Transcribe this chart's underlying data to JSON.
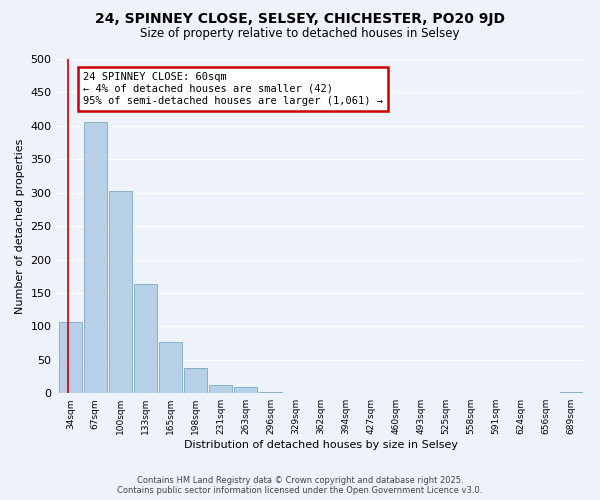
{
  "title": "24, SPINNEY CLOSE, SELSEY, CHICHESTER, PO20 9JD",
  "subtitle": "Size of property relative to detached houses in Selsey",
  "xlabel": "Distribution of detached houses by size in Selsey",
  "ylabel": "Number of detached properties",
  "bar_labels": [
    "34sqm",
    "67sqm",
    "100sqm",
    "133sqm",
    "165sqm",
    "198sqm",
    "231sqm",
    "263sqm",
    "296sqm",
    "329sqm",
    "362sqm",
    "394sqm",
    "427sqm",
    "460sqm",
    "493sqm",
    "525sqm",
    "558sqm",
    "591sqm",
    "624sqm",
    "656sqm",
    "689sqm"
  ],
  "bar_values": [
    107,
    405,
    302,
    163,
    77,
    37,
    13,
    9,
    2,
    0,
    0,
    0,
    0,
    0,
    0,
    0,
    0,
    0,
    0,
    0,
    2
  ],
  "bar_color": "#b8cfe8",
  "bar_edge_color": "#7aaac8",
  "annotation_text_line1": "24 SPINNEY CLOSE: 60sqm",
  "annotation_text_line2": "← 4% of detached houses are smaller (42)",
  "annotation_text_line3": "95% of semi-detached houses are larger (1,061) →",
  "annotation_box_color": "#ffffff",
  "annotation_box_edge": "#cc0000",
  "red_line_color": "#cc0000",
  "ylim": [
    0,
    500
  ],
  "yticks": [
    0,
    50,
    100,
    150,
    200,
    250,
    300,
    350,
    400,
    450,
    500
  ],
  "bg_color": "#eef2fa",
  "footer_line1": "Contains HM Land Registry data © Crown copyright and database right 2025.",
  "footer_line2": "Contains public sector information licensed under the Open Government Licence v3.0."
}
